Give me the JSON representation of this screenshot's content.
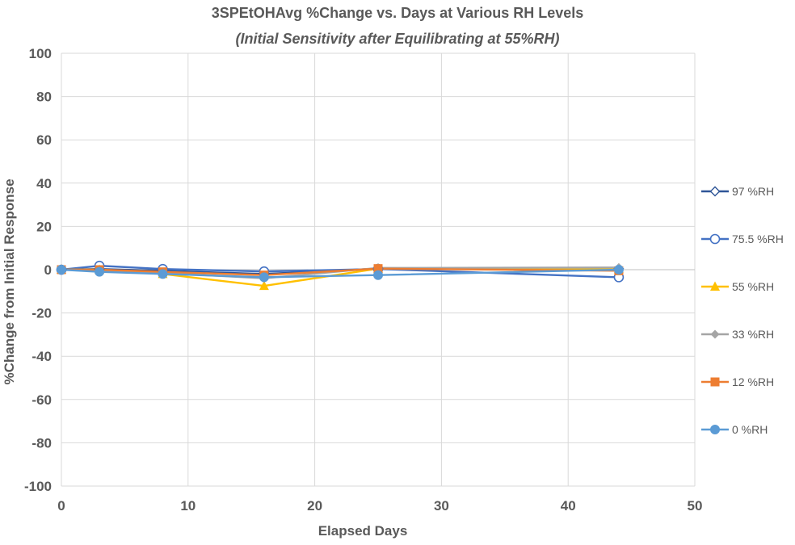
{
  "chart_data": {
    "type": "line",
    "title": "3SPEtOHAvg %Change vs. Days at Various RH Levels",
    "subtitle": "(Initial Sensitivity after Equilibrating at 55%RH)",
    "xlabel": "Elapsed Days",
    "ylabel": "%Change from Initial Response",
    "xlim": [
      0,
      50
    ],
    "ylim": [
      -100,
      100
    ],
    "x_ticks": [
      0,
      10,
      20,
      30,
      40,
      50
    ],
    "y_ticks": [
      100,
      80,
      60,
      40,
      20,
      0,
      -20,
      -40,
      -60,
      -80,
      -100
    ],
    "grid": "vertical and horizontal",
    "legend_position": "right",
    "series": [
      {
        "name": "97 %RH",
        "color": "#2f5597",
        "marker": "diamond-open",
        "x": [
          0,
          3,
          8,
          16,
          25,
          44
        ],
        "y": [
          0,
          0.3,
          -0.5,
          -2,
          0.5,
          0.5
        ]
      },
      {
        "name": "75.5 %RH",
        "color": "#4472c4",
        "marker": "circle-open",
        "x": [
          0,
          3,
          8,
          16,
          25,
          44
        ],
        "y": [
          0,
          1.8,
          0.3,
          -0.8,
          0.3,
          -3.5
        ]
      },
      {
        "name": "55 %RH",
        "color": "#ffc000",
        "marker": "triangle",
        "x": [
          0,
          3,
          8,
          16,
          25,
          44
        ],
        "y": [
          0,
          0,
          -2,
          -7.5,
          0.5,
          0.3
        ]
      },
      {
        "name": "33 %RH",
        "color": "#a5a5a5",
        "marker": "diamond",
        "x": [
          0,
          3,
          8,
          16,
          25,
          44
        ],
        "y": [
          0,
          -0.3,
          -1.5,
          -4,
          0.8,
          1
        ]
      },
      {
        "name": "12 %RH",
        "color": "#ed7d31",
        "marker": "square",
        "x": [
          0,
          3,
          8,
          16,
          25,
          44
        ],
        "y": [
          0,
          0,
          -1,
          -2.5,
          0.5,
          -0.5
        ]
      },
      {
        "name": "0 %RH",
        "color": "#5b9bd5",
        "marker": "circle",
        "x": [
          0,
          3,
          8,
          16,
          25,
          44
        ],
        "y": [
          0,
          -1,
          -2,
          -3.5,
          -2.5,
          0
        ]
      }
    ]
  }
}
